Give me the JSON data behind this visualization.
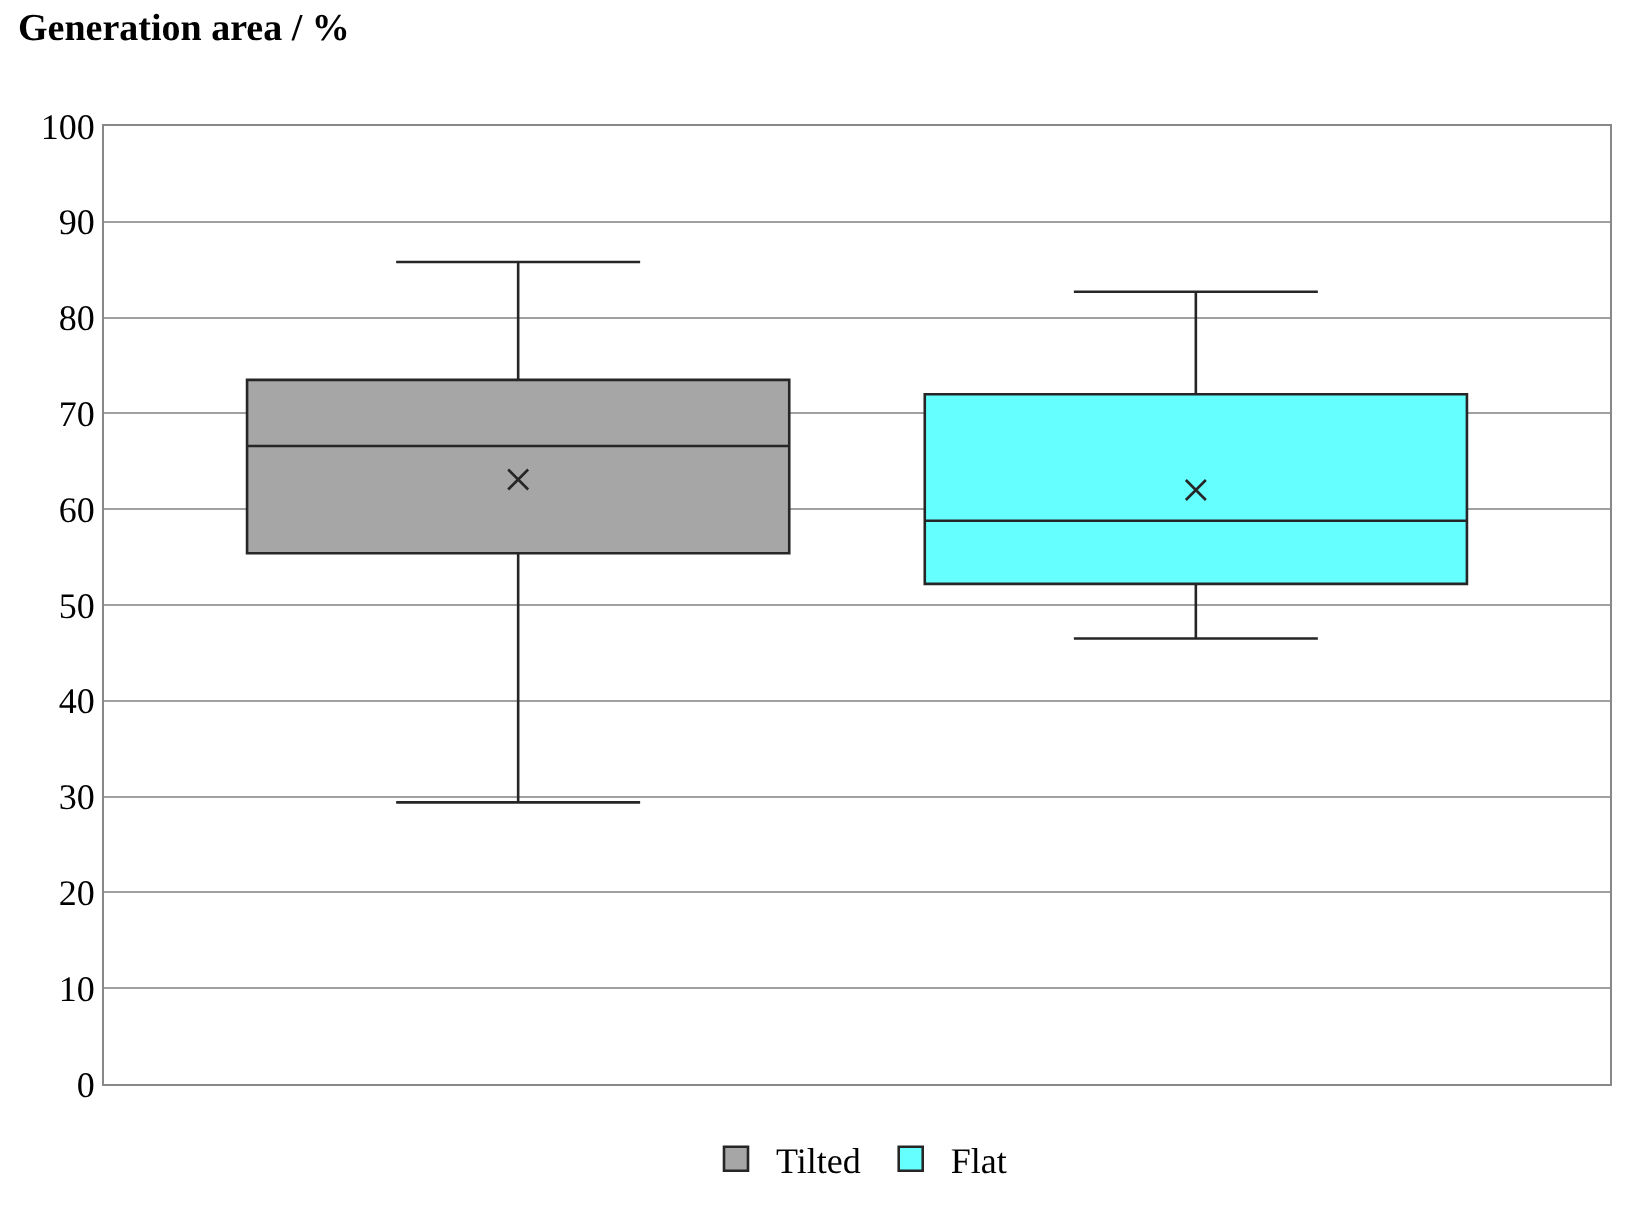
{
  "chart_data": {
    "type": "box",
    "ylabel": "Generation area / %",
    "categories": [
      null
    ],
    "series": [
      {
        "name": "Tilted",
        "color": "#a6a6a6",
        "boxes": [
          {
            "low": 29.4,
            "q1": 55.4,
            "median": 66.6,
            "q3": 73.5,
            "high": 85.8,
            "mean": 63.1
          }
        ]
      },
      {
        "name": "Flat",
        "color": "#66ffff",
        "boxes": [
          {
            "low": 46.5,
            "q1": 52.2,
            "median": 58.8,
            "q3": 72.0,
            "high": 82.7,
            "mean": 62.0
          }
        ]
      }
    ],
    "ylim": [
      0,
      100
    ],
    "yticks": [
      0,
      10,
      20,
      30,
      40,
      50,
      60,
      70,
      80,
      90,
      100
    ],
    "grid": "y",
    "legend": "bottom",
    "marker": "cross"
  }
}
